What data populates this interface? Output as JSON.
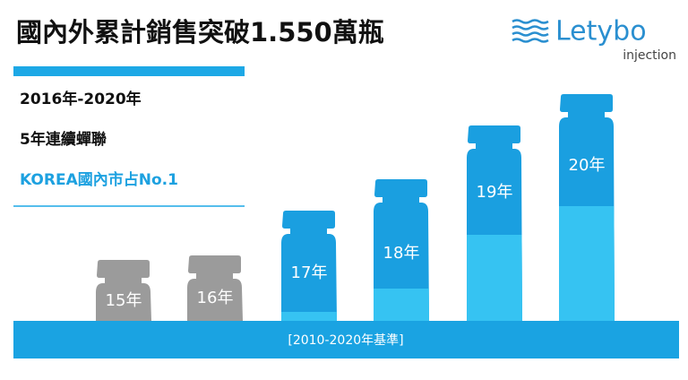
{
  "header": {
    "title": "國內外累計銷售突破1.550萬瓶",
    "brand": "Letybo",
    "brand_sub": "injection"
  },
  "claims": [
    "2016年-2020年",
    "5年連續蟬聯",
    "KOREA國內市占No.1"
  ],
  "bottles": [
    "15年",
    "16年",
    "17年",
    "18年",
    "19年",
    "20年"
  ],
  "footer": "[2010-2020年基準]"
}
